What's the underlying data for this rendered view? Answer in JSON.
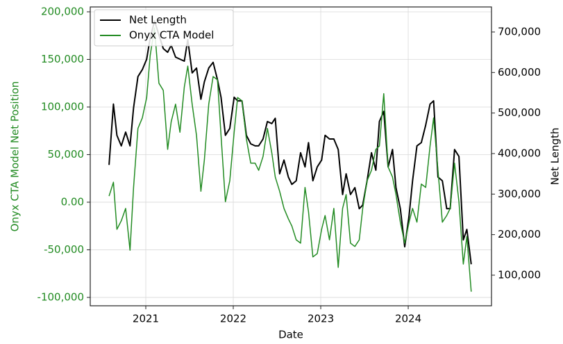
{
  "chart_data": {
    "type": "line",
    "xlabel": "Date",
    "ylabel": "Onyx CTA Model Net Position",
    "y2label": "Net Length",
    "x": [
      2020.58,
      2020.63,
      2020.67,
      2020.72,
      2020.77,
      2020.82,
      2020.86,
      2020.91,
      2020.96,
      2021.01,
      2021.05,
      2021.1,
      2021.15,
      2021.2,
      2021.25,
      2021.29,
      2021.34,
      2021.39,
      2021.44,
      2021.48,
      2021.53,
      2021.58,
      2021.63,
      2021.67,
      2021.72,
      2021.77,
      2021.82,
      2021.86,
      2021.91,
      2021.96,
      2022.01,
      2022.05,
      2022.1,
      2022.15,
      2022.2,
      2022.25,
      2022.29,
      2022.34,
      2022.39,
      2022.44,
      2022.48,
      2022.53,
      2022.58,
      2022.63,
      2022.67,
      2022.72,
      2022.77,
      2022.82,
      2022.86,
      2022.91,
      2022.96,
      2023.01,
      2023.05,
      2023.1,
      2023.15,
      2023.2,
      2023.25,
      2023.29,
      2023.34,
      2023.39,
      2023.44,
      2023.48,
      2023.53,
      2023.58,
      2023.63,
      2023.67,
      2023.72,
      2023.77,
      2023.82,
      2023.86,
      2023.91,
      2023.96,
      2024.01,
      2024.05,
      2024.1,
      2024.15,
      2024.2,
      2024.25,
      2024.29,
      2024.34,
      2024.39,
      2024.44,
      2024.48,
      2024.53,
      2024.58,
      2024.63,
      2024.67,
      2024.72
    ],
    "series": [
      {
        "name": "Net Length",
        "color": "#000000",
        "axis": "y2",
        "values": [
          372000,
          522000,
          445000,
          419000,
          453000,
          419000,
          513000,
          590000,
          607000,
          633000,
          685000,
          727000,
          693000,
          659000,
          650000,
          667000,
          638000,
          633000,
          628000,
          681000,
          599000,
          611000,
          534000,
          577000,
          611000,
          625000,
          582000,
          539000,
          445000,
          462000,
          539000,
          530000,
          530000,
          445000,
          424000,
          419000,
          419000,
          436000,
          479000,
          474000,
          487000,
          350000,
          384000,
          342000,
          324000,
          333000,
          402000,
          367000,
          427000,
          333000,
          367000,
          384000,
          445000,
          436000,
          436000,
          410000,
          299000,
          350000,
          299000,
          316000,
          264000,
          273000,
          333000,
          402000,
          359000,
          479000,
          504000,
          367000,
          410000,
          316000,
          264000,
          170000,
          247000,
          333000,
          419000,
          427000,
          470000,
          522000,
          530000,
          342000,
          333000,
          264000,
          264000,
          410000,
          393000,
          187000,
          213000,
          127000
        ]
      },
      {
        "name": "Onyx CTA Model",
        "color": "#228b22",
        "axis": "y",
        "values": [
          6500,
          21000,
          -28500,
          -19500,
          -6500,
          -50500,
          15500,
          77500,
          88500,
          110000,
          154000,
          183000,
          125000,
          117500,
          55500,
          84500,
          103000,
          73500,
          121000,
          143000,
          103000,
          70000,
          11500,
          44500,
          103000,
          132000,
          128500,
          70000,
          500,
          22500,
          73500,
          110000,
          106500,
          66500,
          41000,
          41000,
          33500,
          48000,
          77500,
          52000,
          26500,
          11500,
          -6500,
          -17500,
          -25000,
          -39500,
          -43000,
          15500,
          -10000,
          -57500,
          -54000,
          -28500,
          -14000,
          -39500,
          -6500,
          -68500,
          -6500,
          8000,
          -43000,
          -46500,
          -39500,
          -6500,
          22500,
          33500,
          55500,
          59000,
          114000,
          37000,
          26500,
          8000,
          -21000,
          -43000,
          -21000,
          -6500,
          -21000,
          19000,
          15500,
          59000,
          88500,
          33500,
          -21000,
          -14000,
          -6500,
          41000,
          500,
          -65000,
          -36000,
          -94000
        ]
      }
    ],
    "xlim": [
      2020.365,
      2024.952
    ],
    "xticks": [
      2021,
      2022,
      2023,
      2024
    ],
    "ylim": [
      -108800,
      205100
    ],
    "yticks": [
      {
        "value": -100000,
        "label": "-100,000"
      },
      {
        "value": -50000,
        "label": "-50,000"
      },
      {
        "value": 0,
        "label": "0.00"
      },
      {
        "value": 50000,
        "label": "50,000"
      },
      {
        "value": 100000,
        "label": "100,000"
      },
      {
        "value": 150000,
        "label": "150,000"
      },
      {
        "value": 200000,
        "label": "200,000"
      }
    ],
    "y2lim": [
      24500,
      761700
    ],
    "y2ticks": [
      {
        "value": 100000,
        "label": "100,000"
      },
      {
        "value": 200000,
        "label": "200,000"
      },
      {
        "value": 300000,
        "label": "300,000"
      },
      {
        "value": 400000,
        "label": "400,000"
      },
      {
        "value": 500000,
        "label": "500,000"
      },
      {
        "value": 600000,
        "label": "600,000"
      },
      {
        "value": 700000,
        "label": "700,000"
      }
    ],
    "grid": true,
    "legend": "upper left"
  }
}
